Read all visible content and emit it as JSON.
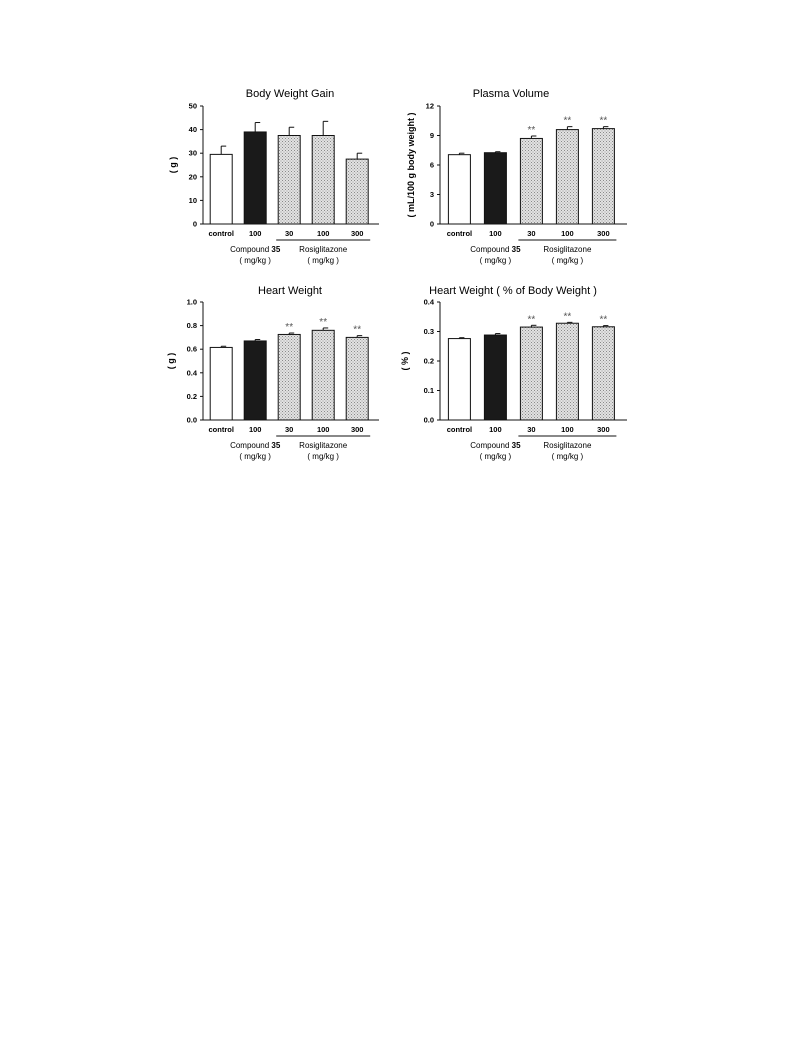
{
  "chart_data": [
    {
      "type": "bar",
      "title": "Body Weight Gain",
      "ylabel": "( g )",
      "ylim": [
        0,
        50
      ],
      "yticks": [
        0,
        10,
        20,
        30,
        40,
        50
      ],
      "categories": [
        "control",
        "100",
        "30",
        "100",
        "300"
      ],
      "values": [
        29.5,
        39,
        37.5,
        37.5,
        27.5
      ],
      "errors": [
        3.5,
        4,
        3.5,
        6,
        2.5
      ],
      "significance": [
        "",
        "",
        "",
        "",
        ""
      ],
      "fills": [
        "white",
        "black",
        "hatch",
        "hatch",
        "hatch"
      ],
      "groups": [
        {
          "name_prefix": "Compound ",
          "name_bold": "35",
          "unit": "( mg/kg )",
          "from": 1,
          "to": 1
        },
        {
          "name_prefix": "Rosiglitazone",
          "name_bold": "",
          "unit": "( mg/kg )",
          "from": 2,
          "to": 4
        }
      ]
    },
    {
      "type": "bar",
      "title": "Plasma Volume",
      "ylabel": "( mL/100 g body weight )",
      "ylim": [
        0,
        12
      ],
      "yticks": [
        0,
        3,
        6,
        9,
        12
      ],
      "categories": [
        "control",
        "100",
        "30",
        "100",
        "300"
      ],
      "values": [
        7.05,
        7.25,
        8.7,
        9.6,
        9.7
      ],
      "errors": [
        0.15,
        0.1,
        0.25,
        0.3,
        0.2
      ],
      "significance": [
        "",
        "",
        "**",
        "**",
        "**"
      ],
      "fills": [
        "white",
        "black",
        "hatch",
        "hatch",
        "hatch"
      ],
      "groups": [
        {
          "name_prefix": "Compound ",
          "name_bold": "35",
          "unit": "( mg/kg )",
          "from": 1,
          "to": 1
        },
        {
          "name_prefix": "Rosiglitazone",
          "name_bold": "",
          "unit": "( mg/kg )",
          "from": 2,
          "to": 4
        }
      ]
    },
    {
      "type": "bar",
      "title": "Heart Weight",
      "ylabel": "( g )",
      "ylim": [
        0,
        1.0
      ],
      "yticks": [
        "0.0",
        "0.2",
        "0.4",
        "0.6",
        "0.8",
        "1.0"
      ],
      "categories": [
        "control",
        "100",
        "30",
        "100",
        "300"
      ],
      "values": [
        0.615,
        0.67,
        0.725,
        0.76,
        0.7
      ],
      "errors": [
        0.01,
        0.012,
        0.012,
        0.02,
        0.015
      ],
      "significance": [
        "",
        "",
        "**",
        "**",
        "**"
      ],
      "fills": [
        "white",
        "black",
        "hatch",
        "hatch",
        "hatch"
      ],
      "groups": [
        {
          "name_prefix": "Compound ",
          "name_bold": "35",
          "unit": "( mg/kg )",
          "from": 1,
          "to": 1
        },
        {
          "name_prefix": "Rosiglitazone",
          "name_bold": "",
          "unit": "( mg/kg )",
          "from": 2,
          "to": 4
        }
      ]
    },
    {
      "type": "bar",
      "title": "Heart Weight ( % of Body Weight )",
      "ylabel": "( % )",
      "ylim": [
        0,
        0.4
      ],
      "yticks": [
        "0.0",
        "0.1",
        "0.2",
        "0.3",
        "0.4"
      ],
      "categories": [
        "control",
        "100",
        "30",
        "100",
        "300"
      ],
      "values": [
        0.276,
        0.288,
        0.315,
        0.328,
        0.316
      ],
      "errors": [
        0.003,
        0.005,
        0.006,
        0.003,
        0.004
      ],
      "significance": [
        "",
        "",
        "**",
        "**",
        "**"
      ],
      "fills": [
        "white",
        "black",
        "hatch",
        "hatch",
        "hatch"
      ],
      "groups": [
        {
          "name_prefix": "Compound ",
          "name_bold": "35",
          "unit": "( mg/kg )",
          "from": 1,
          "to": 1
        },
        {
          "name_prefix": "Rosiglitazone",
          "name_bold": "",
          "unit": "( mg/kg )",
          "from": 2,
          "to": 4
        }
      ]
    }
  ]
}
